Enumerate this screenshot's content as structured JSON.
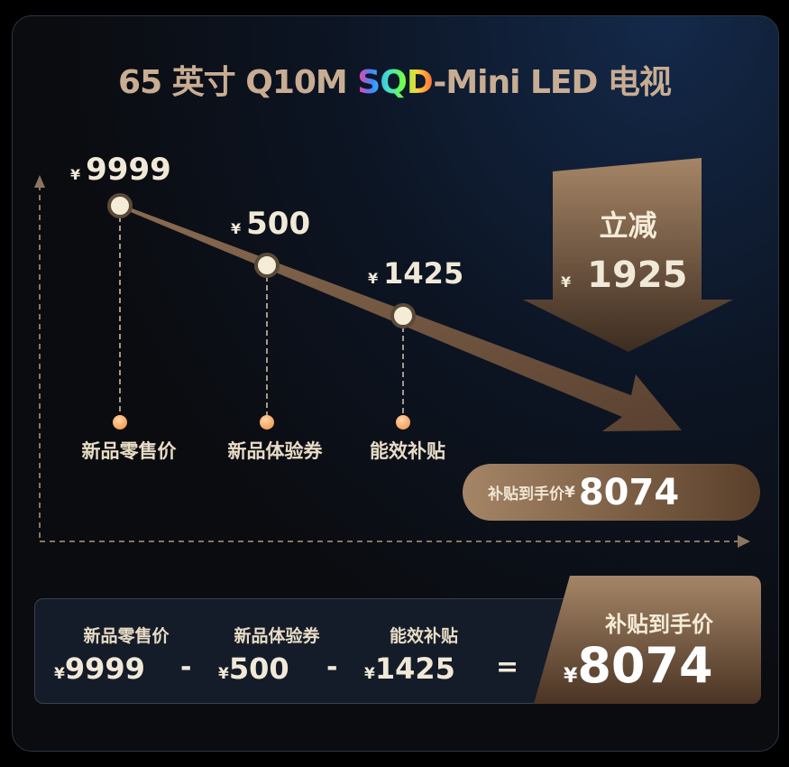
{
  "title": {
    "prefix": "65 英寸 Q10M ",
    "brand": "SQD",
    "suffix": "-Mini LED 电视"
  },
  "chart": {
    "currency": "¥",
    "points": [
      {
        "label": "新品零售价",
        "amount": "9999"
      },
      {
        "label": "新品体验券",
        "amount": "500"
      },
      {
        "label": "能效补贴",
        "amount": "1425"
      }
    ],
    "discount": {
      "label": "立减",
      "amount": "1925"
    },
    "final": {
      "label": "补贴到手价",
      "amount": "8074"
    }
  },
  "summary": {
    "items": [
      {
        "label": "新品零售价",
        "amount": "9999"
      },
      {
        "label": "新品体验券",
        "amount": "500"
      },
      {
        "label": "能效补贴",
        "amount": "1425"
      }
    ],
    "minus": "-",
    "equals": "=",
    "final_label": "补贴到手价",
    "final_amount": "8074"
  },
  "colors": {
    "gold": "#c8ad93",
    "bronze_light": "#a58566",
    "bronze_dark": "#4a3424",
    "dot": "#f08a3c"
  }
}
